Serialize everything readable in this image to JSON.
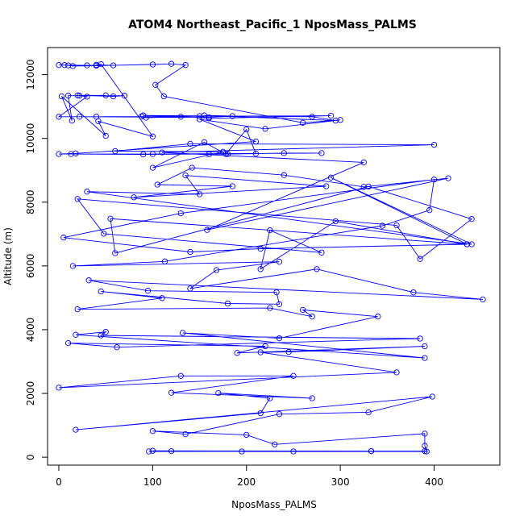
{
  "chart_data": {
    "type": "line",
    "title": "ATOM4 Northeast_Pacific_1 NposMass_PALMS",
    "xlabel": "NposMass_PALMS",
    "ylabel": "Altitude (m)",
    "xlim": [
      -12,
      470
    ],
    "ylim": [
      -250,
      12850
    ],
    "x_ticks": [
      0,
      100,
      200,
      300,
      400
    ],
    "y_ticks": [
      0,
      2000,
      4000,
      6000,
      8000,
      10000,
      12000
    ],
    "y_tick_labels": [
      "0",
      "2000",
      "4000",
      "6000",
      "8000",
      "10000",
      "12000"
    ],
    "color": "#0000ff",
    "grid": false,
    "legend": "none",
    "series": [
      {
        "markers": "open-circle",
        "x": [
          96,
          333,
          100,
          120,
          390,
          333,
          195,
          250,
          392,
          390,
          390,
          230,
          200,
          100,
          135,
          235,
          330,
          398,
          18,
          215,
          225,
          170,
          270,
          120,
          250,
          130,
          0,
          360,
          215,
          245,
          390,
          190,
          220,
          10,
          62,
          385,
          45,
          50,
          18,
          390,
          132,
          235,
          340,
          260,
          270,
          225,
          20,
          110,
          45,
          180,
          235,
          232,
          95,
          32,
          452,
          378,
          275,
          140,
          168,
          235,
          15,
          113,
          345,
          395,
          400,
          130,
          5,
          140,
          215,
          435,
          55,
          60,
          330,
          440,
          385,
          360,
          20,
          48,
          280,
          225,
          215,
          295,
          435,
          290,
          440,
          30,
          150,
          135,
          285,
          80,
          185,
          105,
          142,
          240,
          325,
          415,
          158,
          325,
          110,
          400,
          140,
          60,
          175,
          100,
          155,
          178,
          200,
          210,
          90,
          13,
          180,
          160,
          240,
          280,
          100,
          0,
          18,
          210,
          150,
          220,
          300,
          260,
          112,
          103,
          135,
          120,
          100,
          40,
          15,
          10,
          6,
          0,
          30,
          58,
          40,
          45,
          100,
          42,
          50,
          3,
          14,
          10,
          70,
          58,
          20,
          50,
          22,
          30,
          0,
          40,
          130,
          90,
          270,
          295,
          155,
          185,
          160,
          22,
          290,
          160,
          150,
          93,
          88
        ],
        "y": [
          180,
          190,
          200,
          190,
          190,
          190,
          180,
          180,
          180,
          360,
          740,
          400,
          700,
          820,
          720,
          1350,
          1410,
          1900,
          860,
          1380,
          1850,
          2010,
          1850,
          2020,
          2550,
          2550,
          2180,
          2660,
          3290,
          3300,
          3480,
          3270,
          3480,
          3580,
          3450,
          3720,
          3820,
          3930,
          3840,
          3110,
          3900,
          3730,
          4410,
          4620,
          4410,
          4680,
          4640,
          4990,
          5200,
          4820,
          4800,
          5170,
          5220,
          5550,
          4950,
          5170,
          5900,
          5290,
          5870,
          6130,
          6000,
          6140,
          7260,
          7750,
          8710,
          7650,
          6890,
          6440,
          6540,
          6680,
          7480,
          6400,
          8490,
          7470,
          6220,
          7270,
          8100,
          7010,
          6420,
          7120,
          5900,
          7400,
          6680,
          8770,
          6680,
          8330,
          8250,
          8840,
          8500,
          8150,
          8500,
          8550,
          9080,
          8850,
          8480,
          8750,
          7130,
          9250,
          9560,
          9800,
          9830,
          9600,
          9580,
          9080,
          9880,
          9510,
          10280,
          9520,
          9500,
          9510,
          9510,
          9500,
          9540,
          9540,
          9510,
          9510,
          9530,
          9900,
          10600,
          10300,
          10580,
          10490,
          11320,
          11680,
          12300,
          12340,
          12320,
          12280,
          12270,
          12290,
          12300,
          12300,
          12290,
          12290,
          12310,
          12330,
          10060,
          10540,
          10080,
          11320,
          10560,
          11340,
          11340,
          11320,
          11350,
          11350,
          11340,
          11310,
          10680,
          10680,
          10680,
          10720,
          10680,
          10560,
          10720,
          10700,
          10660,
          10680,
          10710,
          10630,
          10700,
          10650,
          10690
        ]
      }
    ]
  }
}
